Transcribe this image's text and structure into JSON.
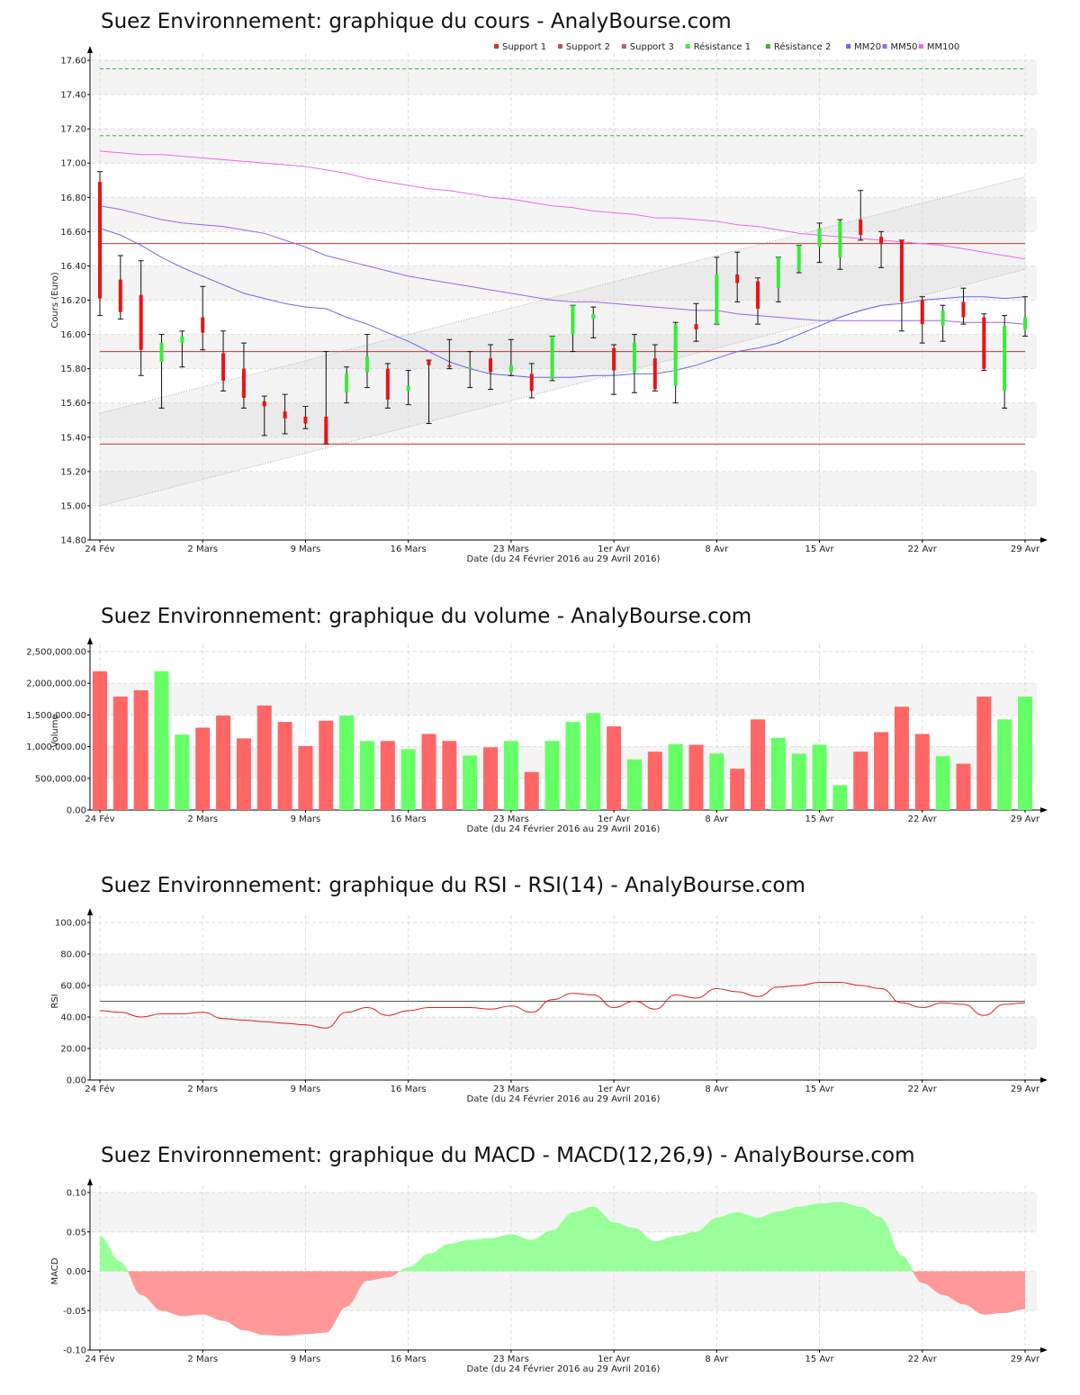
{
  "colors": {
    "up": "#33ee33",
    "down": "#ee1111",
    "vol_up": "#66ff66",
    "vol_down": "#ff6666",
    "macd_pos": "#99ff99",
    "macd_neg": "#ff9999",
    "support": "#cc3333",
    "resistance": "#44aa44",
    "mm20": "#6666ee",
    "mm50": "#9966ee",
    "mm100": "#ee66ee",
    "rsi": "#dd2222"
  },
  "chart_data": [
    {
      "name": "price",
      "type": "candlestick",
      "title": "Suez Environnement: graphique du cours - AnalyBourse.com",
      "ylabel": "Cours (Euro)",
      "xlabel": "Date (du 24 Février 2016 au 29 Avril 2016)",
      "ylim": [
        14.8,
        17.6
      ],
      "yticks": [
        "14.80",
        "15.00",
        "15.20",
        "15.40",
        "15.60",
        "15.80",
        "16.00",
        "16.20",
        "16.40",
        "16.60",
        "16.80",
        "17.00",
        "17.20",
        "17.40",
        "17.60"
      ],
      "xticks": [
        "24 Fév",
        "2 Mars",
        "9 Mars",
        "16 Mars",
        "23 Mars",
        "1er Avr",
        "8 Avr",
        "15 Avr",
        "22 Avr",
        "29 Avr"
      ],
      "xtick_index": [
        0,
        5,
        10,
        15,
        20,
        25,
        30,
        35,
        40,
        45
      ],
      "legend": [
        "Support 1",
        "Support 2",
        "Support 3",
        "Résistance 1",
        "Résistance 2",
        "MM20",
        "MM50",
        "MM100"
      ],
      "legend_placement": "top-right",
      "grid": true,
      "candles": [
        {
          "o": 16.89,
          "c": 16.21,
          "h": 16.95,
          "l": 16.11
        },
        {
          "o": 16.32,
          "c": 16.13,
          "h": 16.46,
          "l": 16.09
        },
        {
          "o": 16.23,
          "c": 15.91,
          "h": 16.43,
          "l": 15.76
        },
        {
          "o": 15.84,
          "c": 15.95,
          "h": 16.0,
          "l": 15.57
        },
        {
          "o": 15.95,
          "c": 15.99,
          "h": 16.02,
          "l": 15.81
        },
        {
          "o": 16.1,
          "c": 16.01,
          "h": 16.28,
          "l": 15.91
        },
        {
          "o": 15.89,
          "c": 15.73,
          "h": 16.02,
          "l": 15.67
        },
        {
          "o": 15.8,
          "c": 15.63,
          "h": 15.95,
          "l": 15.57
        },
        {
          "o": 15.61,
          "c": 15.58,
          "h": 15.64,
          "l": 15.41
        },
        {
          "o": 15.55,
          "c": 15.51,
          "h": 15.65,
          "l": 15.42
        },
        {
          "o": 15.52,
          "c": 15.48,
          "h": 15.58,
          "l": 15.45
        },
        {
          "o": 15.52,
          "c": 15.36,
          "h": 15.9,
          "l": 15.36
        },
        {
          "o": 15.66,
          "c": 15.77,
          "h": 15.81,
          "l": 15.6
        },
        {
          "o": 15.78,
          "c": 15.87,
          "h": 16.0,
          "l": 15.69
        },
        {
          "o": 15.8,
          "c": 15.62,
          "h": 15.83,
          "l": 15.57
        },
        {
          "o": 15.67,
          "c": 15.7,
          "h": 15.79,
          "l": 15.59
        },
        {
          "o": 15.85,
          "c": 15.82,
          "h": 15.85,
          "l": 15.48
        },
        {
          "o": 15.82,
          "c": 15.81,
          "h": 15.97,
          "l": 15.8
        },
        {
          "o": 15.8,
          "c": 15.81,
          "h": 15.9,
          "l": 15.69
        },
        {
          "o": 15.86,
          "c": 15.78,
          "h": 15.94,
          "l": 15.68
        },
        {
          "o": 15.78,
          "c": 15.82,
          "h": 15.97,
          "l": 15.76
        },
        {
          "o": 15.77,
          "c": 15.67,
          "h": 15.83,
          "l": 15.63
        },
        {
          "o": 15.74,
          "c": 15.99,
          "h": 15.99,
          "l": 15.73
        },
        {
          "o": 16.0,
          "c": 16.17,
          "h": 16.17,
          "l": 15.9
        },
        {
          "o": 16.09,
          "c": 16.12,
          "h": 16.16,
          "l": 15.98
        },
        {
          "o": 15.92,
          "c": 15.79,
          "h": 15.94,
          "l": 15.65
        },
        {
          "o": 15.78,
          "c": 15.95,
          "h": 16.0,
          "l": 15.66
        },
        {
          "o": 15.86,
          "c": 15.68,
          "h": 15.94,
          "l": 15.67
        },
        {
          "o": 15.7,
          "c": 16.06,
          "h": 16.07,
          "l": 15.6
        },
        {
          "o": 16.06,
          "c": 16.03,
          "h": 16.18,
          "l": 15.96
        },
        {
          "o": 16.06,
          "c": 16.35,
          "h": 16.45,
          "l": 16.06
        },
        {
          "o": 16.35,
          "c": 16.3,
          "h": 16.48,
          "l": 16.19
        },
        {
          "o": 16.31,
          "c": 16.15,
          "h": 16.33,
          "l": 16.06
        },
        {
          "o": 16.27,
          "c": 16.45,
          "h": 16.45,
          "l": 16.19
        },
        {
          "o": 16.37,
          "c": 16.52,
          "h": 16.52,
          "l": 16.36
        },
        {
          "o": 16.51,
          "c": 16.62,
          "h": 16.65,
          "l": 16.42
        },
        {
          "o": 16.45,
          "c": 16.66,
          "h": 16.67,
          "l": 16.38
        },
        {
          "o": 16.67,
          "c": 16.58,
          "h": 16.84,
          "l": 16.55
        },
        {
          "o": 16.57,
          "c": 16.53,
          "h": 16.6,
          "l": 16.39
        },
        {
          "o": 16.55,
          "c": 16.19,
          "h": 16.55,
          "l": 16.02
        },
        {
          "o": 16.2,
          "c": 16.06,
          "h": 16.22,
          "l": 15.95
        },
        {
          "o": 16.05,
          "c": 16.14,
          "h": 16.17,
          "l": 15.96
        },
        {
          "o": 16.19,
          "c": 16.1,
          "h": 16.27,
          "l": 16.06
        },
        {
          "o": 16.1,
          "c": 15.8,
          "h": 16.12,
          "l": 15.79
        },
        {
          "o": 15.67,
          "c": 16.05,
          "h": 16.11,
          "l": 15.57
        },
        {
          "o": 16.03,
          "c": 16.1,
          "h": 16.22,
          "l": 15.99
        }
      ],
      "support": [
        15.36,
        15.9,
        16.53
      ],
      "resistance": [
        17.16,
        17.55
      ],
      "mm20": [
        16.62,
        16.58,
        16.52,
        16.45,
        16.39,
        16.34,
        16.29,
        16.24,
        16.21,
        16.18,
        16.16,
        16.15,
        16.1,
        16.06,
        16.01,
        15.96,
        15.9,
        15.84,
        15.8,
        15.77,
        15.76,
        15.75,
        15.75,
        15.75,
        15.76,
        15.76,
        15.77,
        15.77,
        15.79,
        15.82,
        15.86,
        15.9,
        15.92,
        15.95,
        16.0,
        16.05,
        16.1,
        16.14,
        16.17,
        16.18,
        16.2,
        16.21,
        16.22,
        16.22,
        16.21,
        16.22
      ],
      "mm50": [
        16.75,
        16.73,
        16.7,
        16.67,
        16.65,
        16.64,
        16.63,
        16.61,
        16.59,
        16.55,
        16.51,
        16.46,
        16.43,
        16.4,
        16.37,
        16.34,
        16.32,
        16.3,
        16.28,
        16.26,
        16.24,
        16.22,
        16.2,
        16.19,
        16.19,
        16.18,
        16.17,
        16.16,
        16.15,
        16.14,
        16.14,
        16.12,
        16.11,
        16.1,
        16.09,
        16.08,
        16.08,
        16.08,
        16.08,
        16.08,
        16.08,
        16.08,
        16.07,
        16.07,
        16.07,
        16.06
      ],
      "mm100": [
        17.07,
        17.06,
        17.05,
        17.05,
        17.04,
        17.03,
        17.02,
        17.01,
        17.0,
        16.99,
        16.98,
        16.96,
        16.94,
        16.91,
        16.89,
        16.87,
        16.85,
        16.84,
        16.82,
        16.8,
        16.79,
        16.77,
        16.75,
        16.74,
        16.72,
        16.71,
        16.7,
        16.68,
        16.68,
        16.67,
        16.66,
        16.64,
        16.63,
        16.61,
        16.59,
        16.58,
        16.57,
        16.56,
        16.55,
        16.54,
        16.53,
        16.52,
        16.5,
        16.48,
        16.46,
        16.44
      ],
      "channel": {
        "upper": [
          15.54,
          16.92
        ],
        "lower": [
          15.0,
          16.38
        ]
      }
    },
    {
      "name": "volume",
      "type": "bar",
      "title": "Suez Environnement: graphique du volume - AnalyBourse.com",
      "ylabel": "Volume",
      "xlabel": "Date (du 24 Février 2016 au 29 Avril 2016)",
      "ylim": [
        0,
        2500000
      ],
      "yticks": [
        "0.00",
        "500,000.00",
        "1,000,000.00",
        "1,500,000.00",
        "2,000,000.00",
        "2,500,000.00"
      ],
      "xticks": [
        "24 Fév",
        "2 Mars",
        "9 Mars",
        "16 Mars",
        "23 Mars",
        "1er Avr",
        "8 Avr",
        "15 Avr",
        "22 Avr",
        "29 Avr"
      ],
      "grid": true,
      "values": [
        2190000,
        1790000,
        1890000,
        2190000,
        1190000,
        1300000,
        1490000,
        1130000,
        1650000,
        1390000,
        1010000,
        1410000,
        1490000,
        1090000,
        1090000,
        960000,
        1200000,
        1090000,
        860000,
        990000,
        1090000,
        600000,
        1090000,
        1390000,
        1530000,
        1320000,
        800000,
        920000,
        1040000,
        1030000,
        890000,
        650000,
        1430000,
        1140000,
        890000,
        1030000,
        390000,
        920000,
        1230000,
        1630000,
        1200000,
        850000,
        730000,
        1790000,
        1430000,
        1790000
      ]
    },
    {
      "name": "rsi",
      "type": "line",
      "title": "Suez Environnement: graphique du RSI - RSI(14) - AnalyBourse.com",
      "ylabel": "RSI",
      "xlabel": "Date (du 24 Février 2016 au 29 Avril 2016)",
      "ylim": [
        0,
        100
      ],
      "yticks": [
        "0.00",
        "20.00",
        "40.00",
        "60.00",
        "80.00",
        "100.00"
      ],
      "xticks": [
        "24 Fév",
        "2 Mars",
        "9 Mars",
        "16 Mars",
        "23 Mars",
        "1er Avr",
        "8 Avr",
        "15 Avr",
        "22 Avr",
        "29 Avr"
      ],
      "reference": 50,
      "grid": true,
      "values": [
        44,
        43,
        40,
        42,
        42,
        43,
        39,
        38,
        37,
        36,
        35,
        33,
        43,
        46,
        41,
        44,
        46,
        46,
        46,
        45,
        47,
        43,
        51,
        55,
        54,
        46,
        50,
        45,
        54,
        52,
        58,
        56,
        53,
        59,
        60,
        62,
        62,
        60,
        58,
        49,
        46,
        49,
        48,
        41,
        48,
        49
      ]
    },
    {
      "name": "macd",
      "type": "area",
      "title": "Suez Environnement: graphique du MACD - MACD(12,26,9) - AnalyBourse.com",
      "ylabel": "MACD",
      "xlabel": "Date (du 24 Février 2016 au 29 Avril 2016)",
      "ylim": [
        -0.1,
        0.1
      ],
      "yticks": [
        "-0.10",
        "-0.05",
        "0.00",
        "0.05",
        "0.10"
      ],
      "xticks": [
        "24 Fév",
        "2 Mars",
        "9 Mars",
        "16 Mars",
        "23 Mars",
        "1er Avr",
        "8 Avr",
        "15 Avr",
        "22 Avr",
        "29 Avr"
      ],
      "grid": true,
      "values": [
        0.045,
        0.012,
        -0.03,
        -0.05,
        -0.057,
        -0.055,
        -0.063,
        -0.075,
        -0.081,
        -0.082,
        -0.08,
        -0.078,
        -0.045,
        -0.012,
        -0.008,
        0.005,
        0.022,
        0.035,
        0.04,
        0.042,
        0.047,
        0.04,
        0.052,
        0.075,
        0.082,
        0.062,
        0.055,
        0.038,
        0.045,
        0.05,
        0.068,
        0.075,
        0.068,
        0.076,
        0.082,
        0.086,
        0.088,
        0.082,
        0.068,
        0.02,
        -0.015,
        -0.03,
        -0.042,
        -0.055,
        -0.053,
        -0.048
      ]
    }
  ]
}
